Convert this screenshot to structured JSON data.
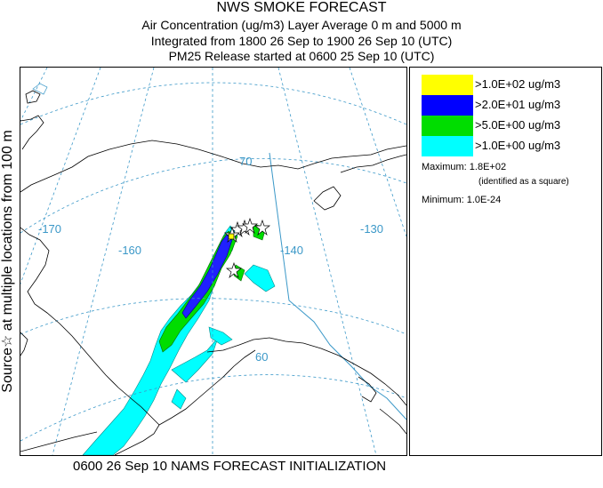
{
  "titles": {
    "line1": "NWS SMOKE FORECAST",
    "line2": "Air Concentration (ug/m3) Layer Average    0 m and  5000 m",
    "line3": "Integrated from 1800 26 Sep to 1900 26 Sep 10 (UTC)",
    "line4": "PM25 Release started at 0600 25 Sep 10 (UTC)"
  },
  "side_label": "Source☆ at multiple locations   from   100 m",
  "footer": "0600 26 Sep 10 NAMS FORECAST INITIALIZATION",
  "legend": {
    "entries": [
      {
        "label": ">1.0E+02 ug/m3",
        "color": "#ffff00"
      },
      {
        "label": ">2.0E+01 ug/m3",
        "color": "#0000ff"
      },
      {
        "label": ">5.0E+00 ug/m3",
        "color": "#00dd00"
      },
      {
        "label": ">1.0E+00 ug/m3",
        "color": "#00ffff"
      }
    ],
    "maximum_label": "Maximum: 1.8E+02",
    "maximum_note": "(identified as a square)",
    "minimum_label": "Minimum: 1.0E-24"
  },
  "map": {
    "graticule_labels": {
      "lon_170": "-170",
      "lon_160": "-160",
      "lon_140": "-140",
      "lon_130": "-130",
      "lat_70": "70",
      "lat_60": "60"
    },
    "colors": {
      "graticule": "#3b98c8",
      "coast": "#000000",
      "border": "#3b98c8"
    }
  }
}
